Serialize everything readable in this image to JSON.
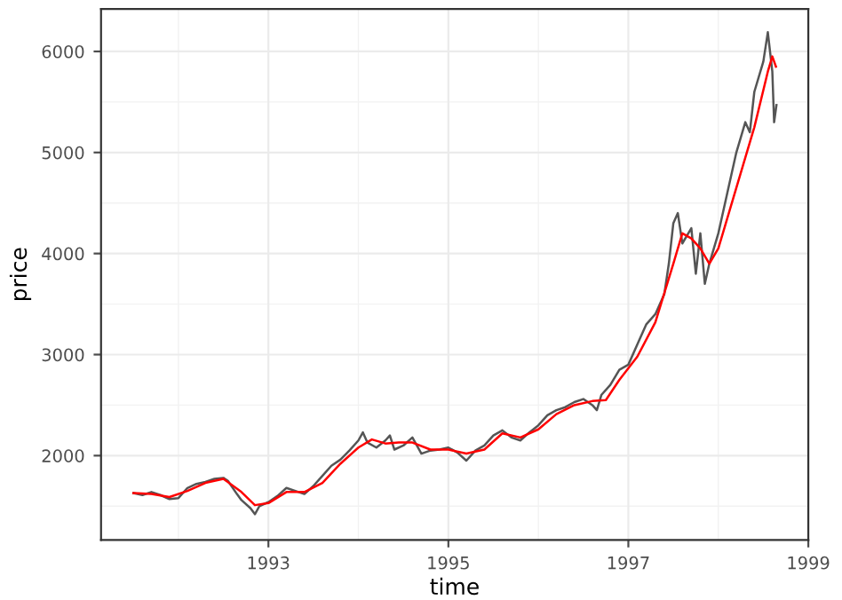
{
  "chart_data": {
    "type": "line",
    "xlabel": "time",
    "ylabel": "price",
    "xlim": [
      1991.14,
      1999.0
    ],
    "ylim": [
      1165,
      6420
    ],
    "xticks": [
      1993,
      1995,
      1997,
      1999
    ],
    "yticks": [
      2000,
      3000,
      4000,
      5000,
      6000
    ],
    "grid": true,
    "marker": "none",
    "line_style": "solid",
    "series": [
      {
        "color": "#555555",
        "x": [
          1991.5,
          1991.6,
          1991.7,
          1991.8,
          1991.9,
          1992.0,
          1992.1,
          1992.2,
          1992.3,
          1992.4,
          1992.5,
          1992.55,
          1992.65,
          1992.7,
          1992.8,
          1992.85,
          1992.9,
          1993.0,
          1993.1,
          1993.2,
          1993.3,
          1993.4,
          1993.5,
          1993.6,
          1993.7,
          1993.8,
          1993.9,
          1994.0,
          1994.05,
          1994.1,
          1994.2,
          1994.3,
          1994.35,
          1994.4,
          1994.5,
          1994.6,
          1994.7,
          1994.8,
          1994.9,
          1995.0,
          1995.1,
          1995.2,
          1995.3,
          1995.4,
          1995.5,
          1995.6,
          1995.7,
          1995.8,
          1995.9,
          1996.0,
          1996.1,
          1996.2,
          1996.3,
          1996.4,
          1996.5,
          1996.6,
          1996.65,
          1996.7,
          1996.8,
          1996.9,
          1997.0,
          1997.1,
          1997.2,
          1997.3,
          1997.4,
          1997.45,
          1997.5,
          1997.55,
          1997.6,
          1997.7,
          1997.75,
          1997.8,
          1997.85,
          1997.9,
          1998.0,
          1998.1,
          1998.2,
          1998.3,
          1998.35,
          1998.4,
          1998.5,
          1998.55,
          1998.6,
          1998.62,
          1998.646
        ],
        "values": [
          1630,
          1610,
          1640,
          1610,
          1570,
          1580,
          1680,
          1720,
          1740,
          1770,
          1780,
          1750,
          1620,
          1560,
          1480,
          1420,
          1500,
          1540,
          1600,
          1680,
          1650,
          1620,
          1700,
          1800,
          1900,
          1960,
          2050,
          2150,
          2230,
          2130,
          2080,
          2150,
          2200,
          2060,
          2100,
          2180,
          2020,
          2050,
          2060,
          2080,
          2030,
          1950,
          2050,
          2100,
          2200,
          2250,
          2180,
          2150,
          2230,
          2300,
          2400,
          2450,
          2480,
          2530,
          2560,
          2500,
          2450,
          2600,
          2700,
          2850,
          2900,
          3100,
          3300,
          3400,
          3600,
          3900,
          4300,
          4400,
          4100,
          4250,
          3800,
          4200,
          3700,
          3900,
          4200,
          4600,
          5000,
          5300,
          5200,
          5600,
          5900,
          6190,
          5800,
          5300,
          5470
        ]
      },
      {
        "color": "#ff0000",
        "x": [
          1991.5,
          1991.7,
          1991.9,
          1992.1,
          1992.3,
          1992.5,
          1992.7,
          1992.85,
          1993.0,
          1993.2,
          1993.4,
          1993.6,
          1993.8,
          1994.0,
          1994.15,
          1994.3,
          1994.45,
          1994.6,
          1994.8,
          1995.0,
          1995.2,
          1995.4,
          1995.6,
          1995.8,
          1996.0,
          1996.2,
          1996.4,
          1996.6,
          1996.75,
          1996.9,
          1997.1,
          1997.3,
          1997.5,
          1997.6,
          1997.7,
          1997.8,
          1997.9,
          1998.0,
          1998.2,
          1998.4,
          1998.55,
          1998.6,
          1998.64
        ],
        "values": [
          1630,
          1620,
          1590,
          1650,
          1730,
          1770,
          1640,
          1510,
          1530,
          1640,
          1640,
          1730,
          1920,
          2080,
          2160,
          2120,
          2130,
          2130,
          2060,
          2060,
          2020,
          2060,
          2220,
          2180,
          2260,
          2410,
          2500,
          2540,
          2550,
          2750,
          2980,
          3320,
          3900,
          4200,
          4150,
          4050,
          3900,
          4050,
          4650,
          5250,
          5800,
          5950,
          5850
        ]
      }
    ]
  }
}
